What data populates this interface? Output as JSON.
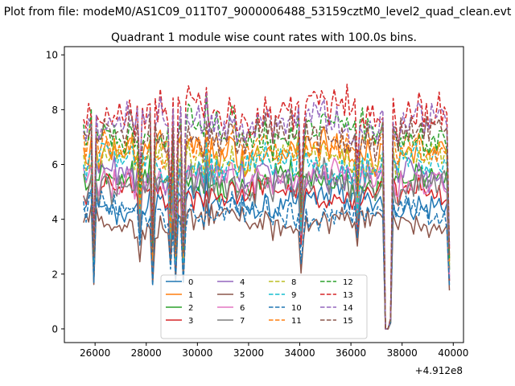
{
  "chart_data": {
    "type": "line",
    "suptitle": "Plot from file: modeM0/AS1C09_011T07_9000006488_53159cztM0_level2_quad_clean.evt",
    "title": "Quadrant 1 module wise count rates with 100.0s bins.",
    "xlabel": "",
    "ylabel": "",
    "x_offset_label": "+4.912e8",
    "xlim": [
      24800,
      40400
    ],
    "ylim": [
      -0.5,
      10.3
    ],
    "xticks": [
      26000,
      28000,
      30000,
      32000,
      34000,
      36000,
      38000,
      40000
    ],
    "xtick_labels": [
      "26000",
      "28000",
      "30000",
      "32000",
      "34000",
      "36000",
      "38000",
      "40000"
    ],
    "yticks": [
      0,
      2,
      4,
      6,
      8,
      10
    ],
    "ytick_labels": [
      "0",
      "2",
      "4",
      "6",
      "8",
      "10"
    ],
    "x_start": 25550,
    "x_step": 100,
    "dips": [
      {
        "x": 25950,
        "f": 0.38
      },
      {
        "x": 27750,
        "f": 0.68
      },
      {
        "x": 28250,
        "f": 0.4
      },
      {
        "x": 28950,
        "f": 0.58
      },
      {
        "x": 29150,
        "f": 0.4
      },
      {
        "x": 29450,
        "f": 0.42
      },
      {
        "x": 31350,
        "f": 0.52
      },
      {
        "x": 34050,
        "f": 0.6
      },
      {
        "x": 36250,
        "f": 0.72
      },
      {
        "x": 37350,
        "f": 0.0
      },
      {
        "x": 37450,
        "f": 0.0
      },
      {
        "x": 37550,
        "f": 0.05
      },
      {
        "x": 39850,
        "f": 0.38
      }
    ],
    "peaks": [
      {
        "x": 30350,
        "f": 1.12
      },
      {
        "x": 31350,
        "f": 1.08
      },
      {
        "x": 31450,
        "f": 1.12
      },
      {
        "x": 37950,
        "f": 1.05
      }
    ],
    "legend": {
      "location": "lower-center",
      "columns": 4
    },
    "series": [
      {
        "name": "0",
        "color": "#1f77b4",
        "dash": "solid",
        "mean": 4.6,
        "amp": 0.4
      },
      {
        "name": "1",
        "color": "#ff7f0e",
        "dash": "solid",
        "mean": 6.5,
        "amp": 0.4
      },
      {
        "name": "2",
        "color": "#2ca02c",
        "dash": "solid",
        "mean": 5.4,
        "amp": 0.4
      },
      {
        "name": "3",
        "color": "#d62728",
        "dash": "solid",
        "mean": 4.9,
        "amp": 0.35
      },
      {
        "name": "4",
        "color": "#9467bd",
        "dash": "solid",
        "mean": 5.6,
        "amp": 0.4
      },
      {
        "name": "5",
        "color": "#8c564b",
        "dash": "solid",
        "mean": 3.9,
        "amp": 0.35
      },
      {
        "name": "6",
        "color": "#e377c2",
        "dash": "solid",
        "mean": 5.5,
        "amp": 0.4
      },
      {
        "name": "7",
        "color": "#7f7f7f",
        "dash": "solid",
        "mean": 5.3,
        "amp": 0.45
      },
      {
        "name": "8",
        "color": "#bcbd22",
        "dash": "dashed",
        "mean": 6.2,
        "amp": 0.4
      },
      {
        "name": "9",
        "color": "#17becf",
        "dash": "dashed",
        "mean": 6.0,
        "amp": 0.45
      },
      {
        "name": "10",
        "color": "#1f77b4",
        "dash": "dashed",
        "mean": 4.2,
        "amp": 0.4
      },
      {
        "name": "11",
        "color": "#ff7f0e",
        "dash": "dashed",
        "mean": 6.6,
        "amp": 0.4
      },
      {
        "name": "12",
        "color": "#2ca02c",
        "dash": "dashed",
        "mean": 7.2,
        "amp": 0.45
      },
      {
        "name": "13",
        "color": "#d62728",
        "dash": "dashed",
        "mean": 7.9,
        "amp": 0.5
      },
      {
        "name": "14",
        "color": "#9467bd",
        "dash": "dashed",
        "mean": 7.5,
        "amp": 0.45
      },
      {
        "name": "15",
        "color": "#8c564b",
        "dash": "dashed",
        "mean": 7.0,
        "amp": 0.45
      }
    ]
  }
}
